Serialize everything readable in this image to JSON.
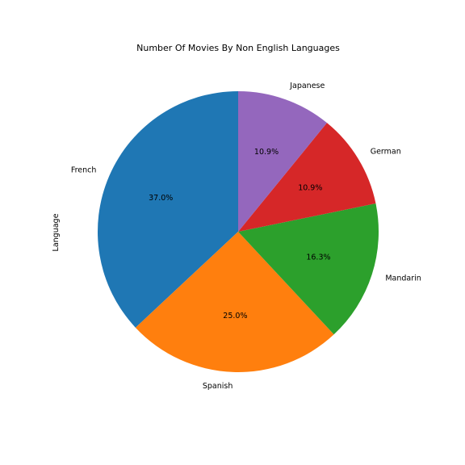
{
  "chart_data": {
    "type": "pie",
    "title": "Number Of Movies By Non English Languages",
    "ylabel": "Language",
    "start_angle": 90,
    "direction": "counterclockwise",
    "slices": [
      {
        "label": "French",
        "value": 37.0,
        "pct_label": "37.0%",
        "color": "#1f77b4"
      },
      {
        "label": "Spanish",
        "value": 25.0,
        "pct_label": "25.0%",
        "color": "#ff7f0e"
      },
      {
        "label": "Mandarin",
        "value": 16.3,
        "pct_label": "16.3%",
        "color": "#2ca02c"
      },
      {
        "label": "German",
        "value": 10.9,
        "pct_label": "10.9%",
        "color": "#d62728"
      },
      {
        "label": "Japanese",
        "value": 10.9,
        "pct_label": "10.9%",
        "color": "#9467bd"
      }
    ]
  }
}
